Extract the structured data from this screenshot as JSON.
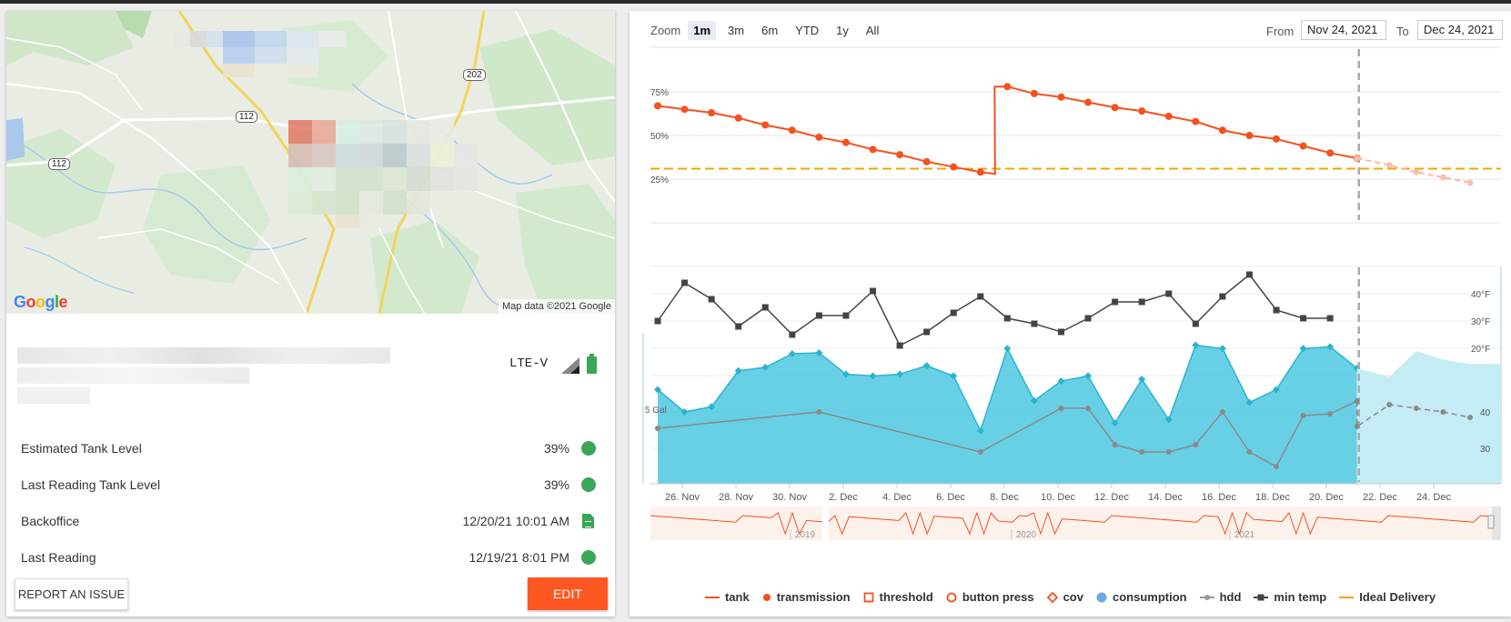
{
  "map": {
    "attribution": "Map data ©2021 Google",
    "logo_letters": [
      "G",
      "o",
      "o",
      "g",
      "l",
      "e"
    ],
    "shields": [
      "112",
      "112",
      "202"
    ]
  },
  "device": {
    "connection": "LTE-V",
    "signal_icon": "signal-icon",
    "battery_icon": "battery-icon"
  },
  "stats": [
    {
      "label": "Estimated Tank Level",
      "value": "39%",
      "indicator": "status-dot",
      "color": "#3aa757"
    },
    {
      "label": "Last Reading Tank Level",
      "value": "39%",
      "indicator": "status-dot",
      "color": "#3aa757"
    },
    {
      "label": "Backoffice",
      "value": "12/20/21 10:01 AM",
      "indicator": "document-icon",
      "color": "#3aa757"
    },
    {
      "label": "Last Reading",
      "value": "12/19/21 8:01 PM",
      "indicator": "status-dot",
      "color": "#3aa757"
    }
  ],
  "buttons": {
    "report": "REPORT AN ISSUE",
    "edit": "EDIT"
  },
  "colors": {
    "accent": "#ff5722",
    "tank": "#f4511e",
    "consumption": "#4dc8e0",
    "threshold": "#f0a500",
    "min_temp": "#444444",
    "hdd": "#888888"
  },
  "zoom": {
    "label": "Zoom",
    "options": [
      "1m",
      "3m",
      "6m",
      "YTD",
      "1y",
      "All"
    ],
    "selected": "1m"
  },
  "range": {
    "from_label": "From",
    "from_value": "Nov 24, 2021",
    "to_label": "To",
    "to_value": "Dec 24, 2021"
  },
  "chart_data": [
    {
      "type": "line",
      "title": "",
      "x_unit": "date",
      "x_range": [
        "2021-11-24",
        "2021-12-24"
      ],
      "forecast_start": "2021-12-20",
      "y_tick_labels": [
        "75%",
        "50%",
        "25%"
      ],
      "ylim": [
        0,
        100
      ],
      "threshold_line": {
        "name": "Ideal Delivery",
        "value": 31
      },
      "series": [
        {
          "name": "tank",
          "x": [
            "2021-11-24",
            "2021-11-25",
            "2021-11-26",
            "2021-11-27",
            "2021-11-28",
            "2021-11-29",
            "2021-11-30",
            "2021-12-01",
            "2021-12-02",
            "2021-12-03",
            "2021-12-04",
            "2021-12-05",
            "2021-12-06",
            "2021-12-07",
            "2021-12-08",
            "2021-12-09",
            "2021-12-10",
            "2021-12-11",
            "2021-12-12",
            "2021-12-13",
            "2021-12-14",
            "2021-12-15",
            "2021-12-16",
            "2021-12-17",
            "2021-12-18",
            "2021-12-19",
            "2021-12-20"
          ],
          "values": [
            67,
            65,
            63,
            60,
            56,
            53,
            49,
            46,
            42,
            39,
            35,
            32,
            29,
            78,
            74,
            72,
            69,
            66,
            64,
            61,
            58,
            53,
            50,
            48,
            44,
            40,
            37
          ]
        },
        {
          "name": "tank (forecast)",
          "x": [
            "2021-12-20",
            "2021-12-21",
            "2021-12-22",
            "2021-12-23",
            "2021-12-24"
          ],
          "values": [
            37,
            33,
            29,
            26,
            23
          ]
        }
      ]
    },
    {
      "type": "area",
      "x_range": [
        "2021-11-24",
        "2021-12-24"
      ],
      "x_tick_labels": [
        "26. Nov",
        "28. Nov",
        "30. Nov",
        "2. Dec",
        "4. Dec",
        "6. Dec",
        "8. Dec",
        "10. Dec",
        "12. Dec",
        "14. Dec",
        "16. Dec",
        "18. Dec",
        "20. Dec",
        "22. Dec",
        "24. Dec"
      ],
      "left_axis_label": "5 Gal",
      "right_axis_top_labels": [
        "40°F",
        "30°F",
        "20°F"
      ],
      "right_axis_bottom_labels": [
        "40",
        "30"
      ],
      "series": [
        {
          "name": "consumption",
          "x": [
            "2021-11-24",
            "2021-11-25",
            "2021-11-26",
            "2021-11-27",
            "2021-11-28",
            "2021-11-29",
            "2021-11-30",
            "2021-12-01",
            "2021-12-02",
            "2021-12-03",
            "2021-12-04",
            "2021-12-05",
            "2021-12-06",
            "2021-12-07",
            "2021-12-08",
            "2021-12-09",
            "2021-12-10",
            "2021-12-11",
            "2021-12-12",
            "2021-12-13",
            "2021-12-14",
            "2021-12-15",
            "2021-12-16",
            "2021-12-17",
            "2021-12-18",
            "2021-12-19",
            "2021-12-20"
          ],
          "values": [
            11.0,
            8.4,
            9.0,
            13.2,
            13.6,
            15.2,
            15.3,
            12.8,
            12.6,
            12.8,
            13.8,
            12.6,
            6.2,
            15.8,
            9.7,
            12.0,
            12.6,
            7.1,
            12.2,
            7.5,
            16.2,
            15.8,
            9.5,
            11.0,
            15.8,
            16.0,
            13.5
          ]
        },
        {
          "name": "consumption (forecast)",
          "x": [
            "2021-12-20",
            "2021-12-21",
            "2021-12-22",
            "2021-12-23",
            "2021-12-24"
          ],
          "values": [
            13.5,
            12.5,
            15.5,
            14.5,
            14.0
          ]
        },
        {
          "name": "min temp",
          "x": [
            "2021-11-24",
            "2021-11-25",
            "2021-11-26",
            "2021-11-27",
            "2021-11-28",
            "2021-11-29",
            "2021-11-30",
            "2021-12-01",
            "2021-12-02",
            "2021-12-03",
            "2021-12-04",
            "2021-12-05",
            "2021-12-06",
            "2021-12-07",
            "2021-12-08",
            "2021-12-09",
            "2021-12-10",
            "2021-12-11",
            "2021-12-12",
            "2021-12-13",
            "2021-12-14",
            "2021-12-15",
            "2021-12-16",
            "2021-12-17",
            "2021-12-18",
            "2021-12-19"
          ],
          "values": [
            30,
            44,
            38,
            28,
            35,
            25,
            32,
            32,
            41,
            21,
            26,
            33,
            39,
            31,
            29,
            26,
            31,
            37,
            37,
            40,
            29,
            39,
            47,
            34,
            31,
            31
          ]
        },
        {
          "name": "hdd",
          "x": [
            "2021-11-24",
            "2021-11-30",
            "2021-12-06",
            "2021-12-09",
            "2021-12-10",
            "2021-12-11",
            "2021-12-12",
            "2021-12-13",
            "2021-12-14",
            "2021-12-15",
            "2021-12-16",
            "2021-12-17",
            "2021-12-18",
            "2021-12-19",
            "2021-12-20"
          ],
          "values": [
            35.5,
            40,
            29,
            41,
            41,
            31,
            29,
            29,
            31,
            40,
            29,
            25,
            39,
            39.5,
            43
          ]
        },
        {
          "name": "hdd (forecast)",
          "x": [
            "2021-12-20",
            "2021-12-21",
            "2021-12-22",
            "2021-12-23",
            "2021-12-24"
          ],
          "values": [
            36,
            42,
            41,
            40,
            38.5
          ]
        }
      ]
    }
  ],
  "navigator": {
    "year_labels": [
      "2019",
      "2020",
      "2021"
    ]
  },
  "legend": [
    {
      "label": "tank",
      "symbol": "line",
      "color": "#f4511e"
    },
    {
      "label": "transmission",
      "symbol": "dot",
      "color": "#f4511e"
    },
    {
      "label": "threshold",
      "symbol": "square-outline",
      "color": "#f4511e"
    },
    {
      "label": "button press",
      "symbol": "circle-outline",
      "color": "#f4511e"
    },
    {
      "label": "cov",
      "symbol": "diamond-outline",
      "color": "#f4511e"
    },
    {
      "label": "consumption",
      "symbol": "dot",
      "color": "#6ea8e0"
    },
    {
      "label": "hdd",
      "symbol": "line-dot",
      "color": "#999999"
    },
    {
      "label": "min temp",
      "symbol": "line-square",
      "color": "#444444"
    },
    {
      "label": "Ideal Delivery",
      "symbol": "line",
      "color": "#f0a500"
    }
  ]
}
